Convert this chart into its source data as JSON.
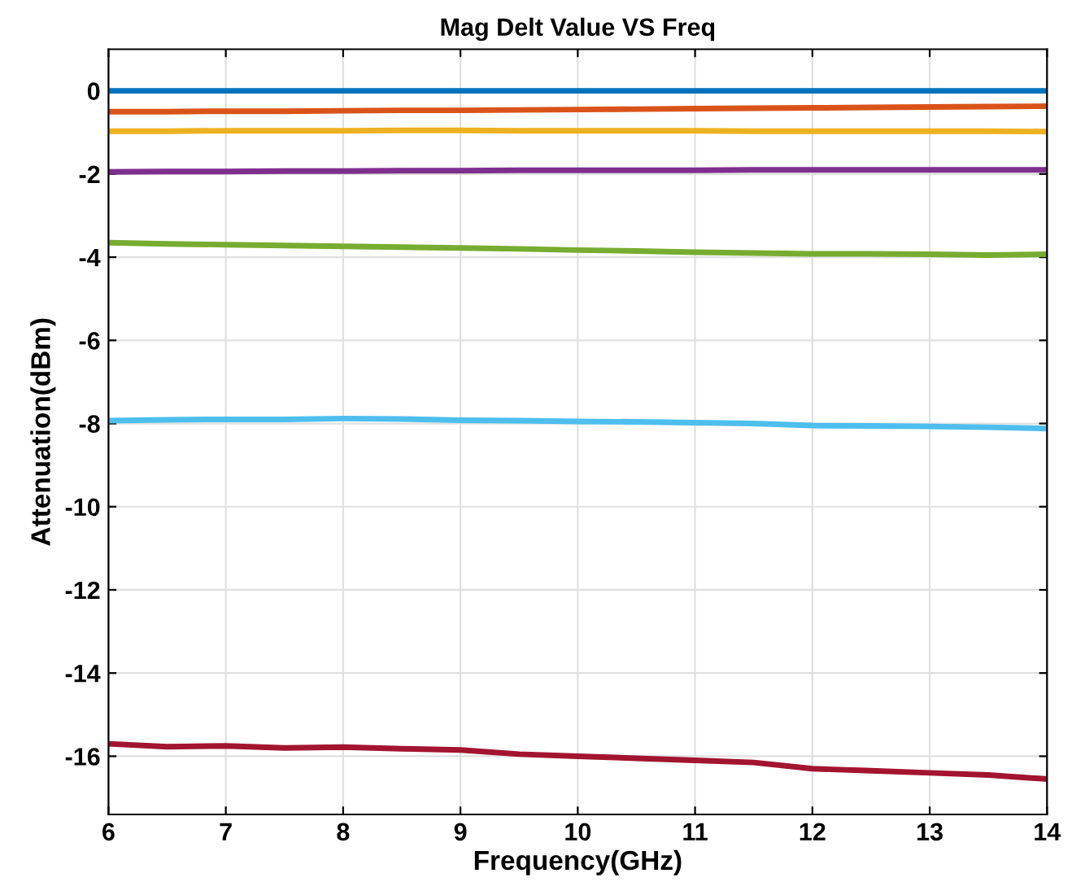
{
  "chart_data": {
    "type": "line",
    "title": "Mag Delt Value VS Freq",
    "xlabel": "Frequency(GHz)",
    "ylabel": "Attenuation(dBm)",
    "x": [
      6,
      6.5,
      7,
      7.5,
      8,
      8.5,
      9,
      9.5,
      10,
      10.5,
      11,
      11.5,
      12,
      12.5,
      13,
      13.5,
      14
    ],
    "series": [
      {
        "color": "#0072bd",
        "values": [
          0,
          0,
          0,
          0,
          0,
          0,
          0,
          0,
          0,
          0,
          0,
          0,
          0,
          0,
          0,
          0,
          0
        ]
      },
      {
        "color": "#d95319",
        "values": [
          -0.5,
          -0.5,
          -0.49,
          -0.49,
          -0.48,
          -0.47,
          -0.47,
          -0.46,
          -0.45,
          -0.44,
          -0.43,
          -0.42,
          -0.41,
          -0.4,
          -0.39,
          -0.38,
          -0.37
        ]
      },
      {
        "color": "#edb120",
        "values": [
          -0.97,
          -0.97,
          -0.96,
          -0.96,
          -0.96,
          -0.95,
          -0.95,
          -0.96,
          -0.96,
          -0.96,
          -0.96,
          -0.97,
          -0.97,
          -0.97,
          -0.97,
          -0.97,
          -0.98
        ]
      },
      {
        "color": "#7e2f8e",
        "values": [
          -1.95,
          -1.94,
          -1.94,
          -1.93,
          -1.93,
          -1.92,
          -1.92,
          -1.91,
          -1.91,
          -1.91,
          -1.91,
          -1.9,
          -1.9,
          -1.9,
          -1.9,
          -1.9,
          -1.9
        ]
      },
      {
        "color": "#77ac30",
        "values": [
          -3.65,
          -3.68,
          -3.7,
          -3.72,
          -3.74,
          -3.76,
          -3.78,
          -3.8,
          -3.83,
          -3.85,
          -3.88,
          -3.9,
          -3.92,
          -3.92,
          -3.93,
          -3.95,
          -3.93
        ]
      },
      {
        "color": "#4dbeee",
        "values": [
          -7.93,
          -7.91,
          -7.9,
          -7.9,
          -7.88,
          -7.89,
          -7.92,
          -7.93,
          -7.95,
          -7.96,
          -7.98,
          -8.0,
          -8.05,
          -8.06,
          -8.07,
          -8.09,
          -8.12
        ]
      },
      {
        "color": "#a2142f",
        "values": [
          -15.7,
          -15.77,
          -15.75,
          -15.8,
          -15.78,
          -15.82,
          -15.85,
          -15.95,
          -16.0,
          -16.05,
          -16.1,
          -16.15,
          -16.3,
          -16.35,
          -16.4,
          -16.45,
          -16.55
        ]
      }
    ],
    "xlim": [
      6,
      14
    ],
    "xticks": [
      6,
      7,
      8,
      9,
      10,
      11,
      12,
      13,
      14
    ],
    "ylim": [
      -17.4,
      1
    ],
    "yticks": [
      -16,
      -14,
      -12,
      -10,
      -8,
      -6,
      -4,
      -2,
      0
    ],
    "grid": true,
    "line_style": "solid",
    "marker": "none",
    "legend": false
  }
}
